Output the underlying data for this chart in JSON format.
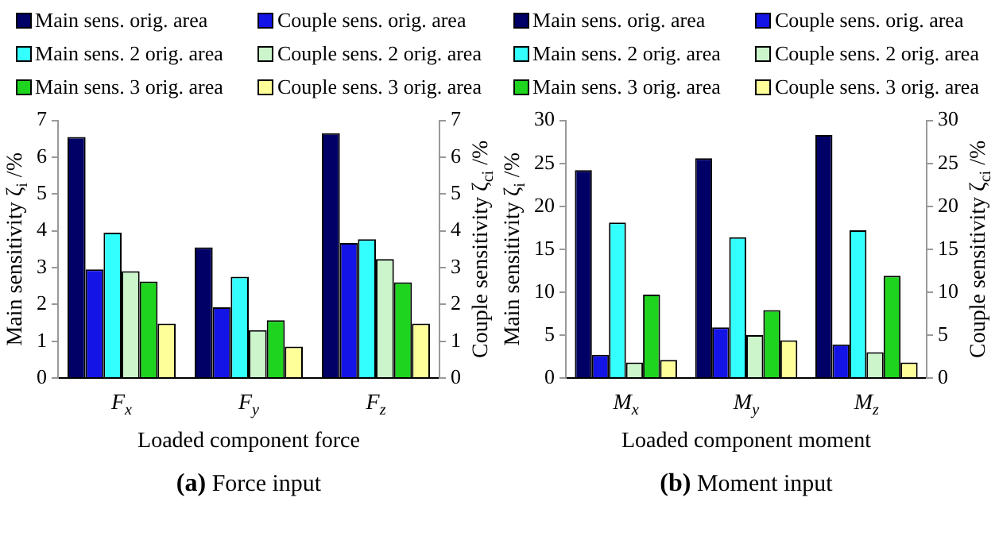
{
  "chart_data": [
    {
      "type": "bar",
      "title": "(a) Force input",
      "xlabel": "Loaded component force",
      "ylabel": "Main sensitivity ζ$_{i}$ /%",
      "y2label": "Couple sensitivity ζ$_{ci}$ /%",
      "categories": [
        "F$_{x}$",
        "F$_{y}$",
        "F$_{z}$"
      ],
      "series": [
        {
          "name": "Main sens. orig. area",
          "color": "#000066",
          "values": [
            6.55,
            3.55,
            6.65
          ]
        },
        {
          "name": "Couple sens. orig. area",
          "color": "#1414e6",
          "axis": "y2",
          "values": [
            2.95,
            1.92,
            3.67
          ]
        },
        {
          "name": "Main sens. 2 orig. area",
          "color": "#33ffff",
          "values": [
            3.95,
            2.75,
            3.77
          ]
        },
        {
          "name": "Couple sens. 2 orig. area",
          "color": "#ccf5cc",
          "axis": "y2",
          "values": [
            2.9,
            1.3,
            3.23
          ]
        },
        {
          "name": "Main sens. 3 orig. area",
          "color": "#1ed41e",
          "values": [
            2.62,
            1.57,
            2.6
          ]
        },
        {
          "name": "Couple sens. 3 orig. area",
          "color": "#ffff99",
          "axis": "y2",
          "values": [
            1.48,
            0.85,
            1.48
          ]
        }
      ],
      "ylim": [
        0,
        7
      ],
      "yticks": [
        0,
        1,
        2,
        3,
        4,
        5,
        6,
        7
      ],
      "y2lim": [
        0,
        7
      ],
      "y2ticks": [
        0,
        1,
        2,
        3,
        4,
        5,
        6,
        7
      ],
      "grid": false,
      "legend": "top"
    },
    {
      "type": "bar",
      "title": "(b) Moment input",
      "xlabel": "Loaded component moment",
      "ylabel": "Main sensitivity ζ$_{i}$ /%",
      "y2label": "Couple sensitivity ζ$_{ci}$ /%",
      "categories": [
        "M$_{x}$",
        "M$_{y}$",
        "M$_{z}$"
      ],
      "series": [
        {
          "name": "Main sens. orig. area",
          "color": "#000066",
          "values": [
            24.2,
            25.6,
            28.3
          ]
        },
        {
          "name": "Couple sens. orig. area",
          "color": "#1414e6",
          "axis": "y2",
          "values": [
            2.7,
            5.9,
            3.9
          ]
        },
        {
          "name": "Main sens. 2 orig. area",
          "color": "#33ffff",
          "values": [
            18.1,
            16.4,
            17.2
          ]
        },
        {
          "name": "Couple sens. 2 orig. area",
          "color": "#ccf5cc",
          "axis": "y2",
          "values": [
            1.8,
            5.0,
            3.0
          ]
        },
        {
          "name": "Main sens. 3 orig. area",
          "color": "#1ed41e",
          "values": [
            9.7,
            7.9,
            11.9
          ]
        },
        {
          "name": "Couple sens. 3 orig. area",
          "color": "#ffff99",
          "axis": "y2",
          "values": [
            2.1,
            4.4,
            1.8
          ]
        }
      ],
      "ylim": [
        0,
        30
      ],
      "yticks": [
        0,
        5,
        10,
        15,
        20,
        25,
        30
      ],
      "y2lim": [
        0,
        30
      ],
      "y2ticks": [
        0,
        5,
        10,
        15,
        20,
        25,
        30
      ],
      "grid": false,
      "legend": "top"
    }
  ]
}
